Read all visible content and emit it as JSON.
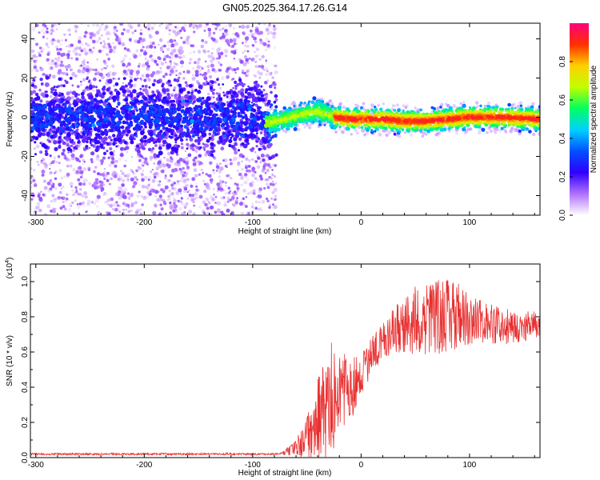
{
  "figure": {
    "title": "GN05.2025.364.17.26.G14"
  },
  "chart_data": [
    {
      "type": "heatmap",
      "xlabel": "Height of straight line (km)",
      "ylabel": "Frequency (Hz)",
      "xlim": [
        -305,
        165
      ],
      "ylim": [
        -50,
        48
      ],
      "x_ticks": [
        -300,
        -200,
        -100,
        0,
        100
      ],
      "x_tick_labels": [
        "-300",
        "-200",
        "-100",
        "0",
        "100"
      ],
      "y_ticks": [
        -40,
        -20,
        0,
        20,
        40
      ],
      "y_tick_labels": [
        "-40",
        "-20",
        "0",
        "20",
        "40"
      ],
      "colorbar": {
        "label": "Normalized spectral amplitude",
        "range": [
          0,
          1
        ],
        "ticks": [
          0.0,
          0.2,
          0.4,
          0.6,
          0.8
        ],
        "tick_labels": [
          "0.0",
          "0.2",
          "0.4",
          "0.6",
          "0.8"
        ],
        "colors": [
          "#ffffff",
          "#b070ff",
          "#3000ff",
          "#0050ff",
          "#00d0ff",
          "#00ff60",
          "#c0ff00",
          "#ffd000",
          "#ff3000",
          "#ff0080"
        ]
      },
      "ridge": [
        {
          "x": -300,
          "f": 0
        },
        {
          "x": -250,
          "f": 1
        },
        {
          "x": -200,
          "f": 0
        },
        {
          "x": -150,
          "f": -1
        },
        {
          "x": -100,
          "f": 0
        },
        {
          "x": -88,
          "f": -3
        },
        {
          "x": -70,
          "f": -1
        },
        {
          "x": -50,
          "f": 2
        },
        {
          "x": -40,
          "f": 3
        },
        {
          "x": -25,
          "f": 0
        },
        {
          "x": -10,
          "f": -1
        },
        {
          "x": 0,
          "f": -1
        },
        {
          "x": 20,
          "f": -1
        },
        {
          "x": 40,
          "f": -2
        },
        {
          "x": 60,
          "f": -2
        },
        {
          "x": 80,
          "f": -1
        },
        {
          "x": 100,
          "f": 0
        },
        {
          "x": 130,
          "f": 0
        },
        {
          "x": 165,
          "f": -1
        }
      ],
      "grid": false
    },
    {
      "type": "line",
      "xlabel": "Height of straight line (km)",
      "ylabel": "SNR (10 * v/v)",
      "y_scale_label": "(x10",
      "y_scale_exponent": "4",
      "y_scale_suffix": ")",
      "xlim": [
        -305,
        165
      ],
      "ylim": [
        0,
        1.1
      ],
      "x_ticks": [
        -300,
        -200,
        -100,
        0,
        100
      ],
      "x_tick_labels": [
        "-300",
        "-200",
        "-100",
        "0",
        "100"
      ],
      "y_ticks": [
        0.0,
        0.2,
        0.4,
        0.6,
        0.8,
        1.0
      ],
      "y_tick_labels": [
        "0.0",
        "0.2",
        "0.4",
        "0.6",
        "0.8",
        "1.0"
      ],
      "series": [
        {
          "color": "#e83030",
          "mean": [
            {
              "x": -305,
              "y": 0.02
            },
            {
              "x": -100,
              "y": 0.02
            },
            {
              "x": -75,
              "y": 0.02
            },
            {
              "x": -65,
              "y": 0.04
            },
            {
              "x": -55,
              "y": 0.08
            },
            {
              "x": -48,
              "y": 0.15
            },
            {
              "x": -40,
              "y": 0.22
            },
            {
              "x": -30,
              "y": 0.26
            },
            {
              "x": -20,
              "y": 0.32
            },
            {
              "x": -10,
              "y": 0.38
            },
            {
              "x": 0,
              "y": 0.48
            },
            {
              "x": 10,
              "y": 0.58
            },
            {
              "x": 20,
              "y": 0.66
            },
            {
              "x": 30,
              "y": 0.72
            },
            {
              "x": 45,
              "y": 0.77
            },
            {
              "x": 60,
              "y": 0.79
            },
            {
              "x": 80,
              "y": 0.81
            },
            {
              "x": 100,
              "y": 0.79
            },
            {
              "x": 120,
              "y": 0.76
            },
            {
              "x": 140,
              "y": 0.74
            },
            {
              "x": 165,
              "y": 0.75
            }
          ],
          "noise": [
            {
              "x": -305,
              "amp": 0.006
            },
            {
              "x": -75,
              "amp": 0.006
            },
            {
              "x": -60,
              "amp": 0.04
            },
            {
              "x": -45,
              "amp": 0.18
            },
            {
              "x": -35,
              "amp": 0.3
            },
            {
              "x": -20,
              "amp": 0.25
            },
            {
              "x": 0,
              "amp": 0.12
            },
            {
              "x": 20,
              "amp": 0.1
            },
            {
              "x": 50,
              "amp": 0.2
            },
            {
              "x": 80,
              "amp": 0.22
            },
            {
              "x": 110,
              "amp": 0.12
            },
            {
              "x": 165,
              "amp": 0.08
            }
          ]
        }
      ],
      "grid": false
    }
  ]
}
